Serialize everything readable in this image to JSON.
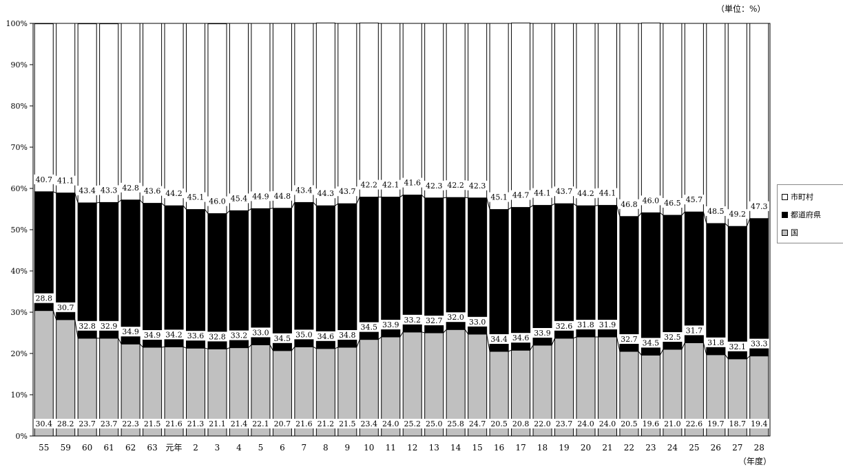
{
  "unit_label": "（単位：%）",
  "x_unit_label": "（年度）",
  "legend": [
    {
      "label": "市町村",
      "color": "#ffffff"
    },
    {
      "label": "都道府県",
      "color": "#000000"
    },
    {
      "label": "国",
      "color": "#c0c0c0"
    }
  ],
  "chart_data": {
    "type": "bar",
    "stacked": true,
    "percent": true,
    "categories": [
      "55",
      "59",
      "60",
      "61",
      "62",
      "63",
      "元年",
      "2",
      "3",
      "4",
      "5",
      "6",
      "7",
      "8",
      "9",
      "10",
      "11",
      "12",
      "13",
      "14",
      "15",
      "16",
      "17",
      "18",
      "19",
      "20",
      "21",
      "22",
      "23",
      "24",
      "25",
      "26",
      "27",
      "28"
    ],
    "series": [
      {
        "name": "国",
        "color": "#c0c0c0",
        "values": [
          30.4,
          28.2,
          23.7,
          23.7,
          22.3,
          21.5,
          21.6,
          21.3,
          21.1,
          21.4,
          22.1,
          20.7,
          21.6,
          21.2,
          21.5,
          23.4,
          24.0,
          25.2,
          25.0,
          25.8,
          24.7,
          20.5,
          20.8,
          22.0,
          23.7,
          24.0,
          24.0,
          20.5,
          19.6,
          21.0,
          22.6,
          19.7,
          18.7,
          19.4
        ]
      },
      {
        "name": "都道府県",
        "color": "#000000",
        "values": [
          28.8,
          30.7,
          32.8,
          32.9,
          34.9,
          34.9,
          34.2,
          33.6,
          32.8,
          33.2,
          33.0,
          34.5,
          35.0,
          34.6,
          34.8,
          34.5,
          33.9,
          33.2,
          32.7,
          32.0,
          33.0,
          34.4,
          34.6,
          33.9,
          32.6,
          31.8,
          31.9,
          32.7,
          34.5,
          32.5,
          31.7,
          31.8,
          32.1,
          33.3
        ]
      },
      {
        "name": "市町村",
        "color": "#ffffff",
        "values": [
          40.7,
          41.1,
          43.4,
          43.3,
          42.8,
          43.6,
          44.2,
          45.1,
          46.0,
          45.4,
          44.9,
          44.8,
          43.4,
          44.3,
          43.7,
          42.2,
          42.1,
          41.6,
          42.3,
          42.2,
          42.3,
          45.1,
          44.7,
          44.1,
          43.7,
          44.2,
          44.1,
          46.8,
          46.0,
          46.5,
          45.7,
          48.5,
          49.2,
          47.3
        ]
      }
    ],
    "ylim": [
      0,
      100
    ],
    "y_ticks": [
      "0%",
      "10%",
      "20%",
      "30%",
      "40%",
      "50%",
      "60%",
      "70%",
      "80%",
      "90%",
      "100%"
    ],
    "grid": false,
    "legend_position": "right"
  }
}
